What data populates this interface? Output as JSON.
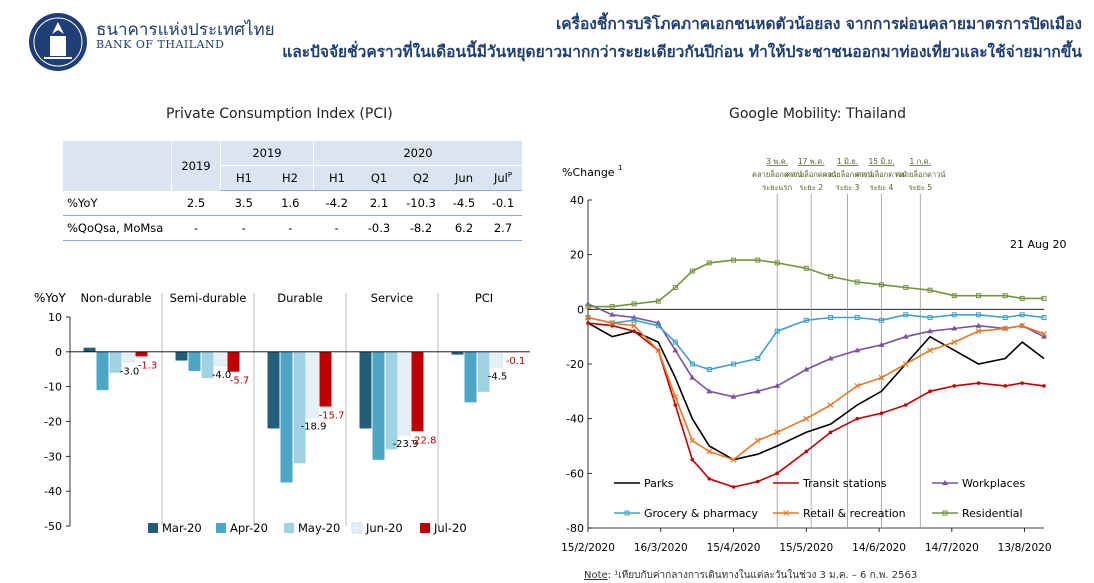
{
  "header": {
    "bank_name_th": "ธนาคารแห่งประเทศไทย",
    "bank_name_en": "BANK OF THAILAND",
    "logo_icon": "bot-seal-icon",
    "headline_line1": "เครื่องชี้การบริโภคภาคเอกชนหดตัวน้อยลง จากการผ่อนคลายมาตรการปิดเมือง",
    "headline_line2": "และปัจจัยชั่วคราวที่ในเดือนนี้มีวันหยุดยาวมากกว่าระยะเดียวกันปีก่อน ทำให้ประชาชนออกมาท่องเที่ยวและใช้จ่ายมากขึ้น",
    "title_color": "#1f3e74"
  },
  "pci_table": {
    "title": "Private Consumption Index (PCI)",
    "groups": [
      "2019",
      "2019",
      "2020"
    ],
    "year_2019": "2019",
    "group_2019": "2019",
    "group_2020": "2020",
    "sub_headers": [
      "H1",
      "H2",
      "H1",
      "Q1",
      "Q2",
      "Jun",
      "Jul"
    ],
    "jul_sup": "P",
    "rows": [
      {
        "label": "%YoY",
        "values": [
          "2.5",
          "3.5",
          "1.6",
          "-4.2",
          "2.1",
          "-10.3",
          "-4.5",
          "-0.1"
        ]
      },
      {
        "label": "%QoQsa, MoMsa",
        "values": [
          "-",
          "-",
          "-",
          "-",
          "-0.3",
          "-8.2",
          "6.2",
          "2.7"
        ]
      }
    ]
  },
  "chart_data": [
    {
      "type": "bar",
      "ylabel": "%YoY",
      "ylim": [
        -50,
        10
      ],
      "yticks": [
        10,
        0,
        -10,
        -20,
        -30,
        -40,
        -50
      ],
      "categories": [
        "Non-durable",
        "Semi-durable",
        "Durable",
        "Service",
        "PCI"
      ],
      "series": [
        {
          "name": "Mar-20",
          "color": "#215f78",
          "values": [
            1.2,
            -2.5,
            -22.0,
            -22.0,
            -0.8
          ]
        },
        {
          "name": "Apr-20",
          "color": "#4ba7c5",
          "values": [
            -11.0,
            -5.5,
            -37.5,
            -31.0,
            -14.5
          ]
        },
        {
          "name": "May-20",
          "color": "#9fd3e3",
          "values": [
            -6.0,
            -7.5,
            -32.0,
            -28.0,
            -11.5
          ]
        },
        {
          "name": "Jun-20",
          "color": "#e3f1f6",
          "values": [
            -3.0,
            -4.0,
            -18.9,
            -23.9,
            -4.5
          ]
        },
        {
          "name": "Jul-20",
          "color": "#c00000",
          "values": [
            -1.3,
            -5.7,
            -15.7,
            -22.8,
            -0.1
          ]
        }
      ],
      "data_labels": [
        {
          "category": "Non-durable",
          "series": "Jun-20",
          "text": "-3.0",
          "color": "#000000"
        },
        {
          "category": "Non-durable",
          "series": "Jul-20",
          "text": "-1.3",
          "color": "#c00000"
        },
        {
          "category": "Semi-durable",
          "series": "Jun-20",
          "text": "-4.0",
          "color": "#000000"
        },
        {
          "category": "Semi-durable",
          "series": "Jul-20",
          "text": "-5.7",
          "color": "#c00000"
        },
        {
          "category": "Durable",
          "series": "Jun-20",
          "text": "-18.9",
          "color": "#000000"
        },
        {
          "category": "Durable",
          "series": "Jul-20",
          "text": "-15.7",
          "color": "#c00000"
        },
        {
          "category": "Service",
          "series": "Jun-20",
          "text": "-23.9",
          "color": "#000000"
        },
        {
          "category": "Service",
          "series": "Jul-20",
          "text": "-22.8",
          "color": "#c00000"
        },
        {
          "category": "PCI",
          "series": "Jun-20",
          "text": "-4.5",
          "color": "#000000"
        },
        {
          "category": "PCI",
          "series": "Jul-20",
          "text": "-0.1",
          "color": "#c00000"
        }
      ],
      "legend_position": "bottom"
    },
    {
      "type": "line",
      "title": "Google Mobility: Thailand",
      "ylabel": "%Change",
      "ylabel_sup": "1",
      "ylim": [
        -80,
        40
      ],
      "yticks": [
        40,
        20,
        0,
        -20,
        -40,
        -60,
        -80
      ],
      "xlim": [
        "2020-02-15",
        "2020-08-21"
      ],
      "xticks": [
        "15/2/2020",
        "16/3/2020",
        "15/4/2020",
        "15/5/2020",
        "14/6/2020",
        "14/7/2020",
        "13/8/2020"
      ],
      "end_label": "21 Aug 20",
      "event_lines": [
        {
          "date": "2020-05-03",
          "top": "3 พ.ค.",
          "mid": "คลายล็อกดาวน์",
          "bot": "ระยะแรก"
        },
        {
          "date": "2020-05-17",
          "top": "17 พ.ค.",
          "mid": "คลายล็อกดาวน์",
          "bot": "ระยะ 2"
        },
        {
          "date": "2020-06-01",
          "top": "1 มิ.ย.",
          "mid": "คลายล็อกดาวน์",
          "bot": "ระยะ 3"
        },
        {
          "date": "2020-06-15",
          "top": "15 มิ.ย.",
          "mid": "คลายล็อกดาวน์",
          "bot": "ระยะ 4"
        },
        {
          "date": "2020-07-01",
          "top": "1 ก.ค.",
          "mid": "คลายล็อกดาวน์",
          "bot": "ระยะ 5"
        }
      ],
      "series": [
        {
          "name": "Parks",
          "color": "#000000",
          "marker": "none",
          "x": [
            "2020-02-15",
            "2020-02-25",
            "2020-03-05",
            "2020-03-15",
            "2020-03-22",
            "2020-03-29",
            "2020-04-05",
            "2020-04-15",
            "2020-04-25",
            "2020-05-03",
            "2020-05-15",
            "2020-05-25",
            "2020-06-05",
            "2020-06-15",
            "2020-06-25",
            "2020-07-05",
            "2020-07-15",
            "2020-07-25",
            "2020-08-05",
            "2020-08-12",
            "2020-08-21"
          ],
          "y": [
            -5,
            -10,
            -8,
            -12,
            -25,
            -40,
            -50,
            -55,
            -53,
            -50,
            -45,
            -42,
            -35,
            -30,
            -20,
            -10,
            -15,
            -20,
            -18,
            -12,
            -18
          ]
        },
        {
          "name": "Transit stations",
          "color": "#c00000",
          "marker": "dot",
          "x": [
            "2020-02-15",
            "2020-02-25",
            "2020-03-05",
            "2020-03-15",
            "2020-03-22",
            "2020-03-29",
            "2020-04-05",
            "2020-04-15",
            "2020-04-25",
            "2020-05-03",
            "2020-05-15",
            "2020-05-25",
            "2020-06-05",
            "2020-06-15",
            "2020-06-25",
            "2020-07-05",
            "2020-07-15",
            "2020-07-25",
            "2020-08-05",
            "2020-08-12",
            "2020-08-21"
          ],
          "y": [
            -5,
            -6,
            -8,
            -15,
            -35,
            -55,
            -62,
            -65,
            -63,
            -60,
            -52,
            -45,
            -40,
            -38,
            -35,
            -30,
            -28,
            -27,
            -28,
            -27,
            -28
          ]
        },
        {
          "name": "Workplaces",
          "color": "#7a52a0",
          "marker": "tri",
          "x": [
            "2020-02-15",
            "2020-02-25",
            "2020-03-05",
            "2020-03-15",
            "2020-03-22",
            "2020-03-29",
            "2020-04-05",
            "2020-04-15",
            "2020-04-25",
            "2020-05-03",
            "2020-05-15",
            "2020-05-25",
            "2020-06-05",
            "2020-06-15",
            "2020-06-25",
            "2020-07-05",
            "2020-07-15",
            "2020-07-25",
            "2020-08-05",
            "2020-08-12",
            "2020-08-21"
          ],
          "y": [
            2,
            -2,
            -3,
            -5,
            -15,
            -25,
            -30,
            -32,
            -30,
            -28,
            -22,
            -18,
            -15,
            -13,
            -10,
            -8,
            -7,
            -6,
            -7,
            -6,
            -10
          ]
        },
        {
          "name": "Grocery & pharmacy",
          "color": "#3fa1c4",
          "marker": "square",
          "x": [
            "2020-02-15",
            "2020-02-25",
            "2020-03-05",
            "2020-03-15",
            "2020-03-22",
            "2020-03-29",
            "2020-04-05",
            "2020-04-15",
            "2020-04-25",
            "2020-05-03",
            "2020-05-15",
            "2020-05-25",
            "2020-06-05",
            "2020-06-15",
            "2020-06-25",
            "2020-07-05",
            "2020-07-15",
            "2020-07-25",
            "2020-08-05",
            "2020-08-12",
            "2020-08-21"
          ],
          "y": [
            -3,
            -5,
            -4,
            -6,
            -12,
            -20,
            -22,
            -20,
            -18,
            -8,
            -4,
            -3,
            -3,
            -4,
            -2,
            -3,
            -2,
            -2,
            -3,
            -2,
            -3
          ]
        },
        {
          "name": "Retail & recreation",
          "color": "#e87722",
          "marker": "x",
          "x": [
            "2020-02-15",
            "2020-02-25",
            "2020-03-05",
            "2020-03-15",
            "2020-03-22",
            "2020-03-29",
            "2020-04-05",
            "2020-04-15",
            "2020-04-25",
            "2020-05-03",
            "2020-05-15",
            "2020-05-25",
            "2020-06-05",
            "2020-06-15",
            "2020-06-25",
            "2020-07-05",
            "2020-07-15",
            "2020-07-25",
            "2020-08-05",
            "2020-08-12",
            "2020-08-21"
          ],
          "y": [
            -3,
            -5,
            -6,
            -15,
            -32,
            -48,
            -52,
            -55,
            -48,
            -45,
            -40,
            -35,
            -28,
            -25,
            -20,
            -15,
            -12,
            -8,
            -7,
            -6,
            -9
          ]
        },
        {
          "name": "Residential",
          "color": "#76923c",
          "marker": "square",
          "x": [
            "2020-02-15",
            "2020-02-25",
            "2020-03-05",
            "2020-03-15",
            "2020-03-22",
            "2020-03-29",
            "2020-04-05",
            "2020-04-15",
            "2020-04-25",
            "2020-05-03",
            "2020-05-15",
            "2020-05-25",
            "2020-06-05",
            "2020-06-15",
            "2020-06-25",
            "2020-07-05",
            "2020-07-15",
            "2020-07-25",
            "2020-08-05",
            "2020-08-12",
            "2020-08-21"
          ],
          "y": [
            1,
            1,
            2,
            3,
            8,
            14,
            17,
            18,
            18,
            17,
            15,
            12,
            10,
            9,
            8,
            7,
            5,
            5,
            5,
            4,
            4
          ]
        }
      ],
      "legend_position": "bottom-inside"
    }
  ],
  "note": {
    "label": "Note",
    "text": ": ¹เทียบกับค่ากลางการเดินทางในแต่ละวันในช่วง 3 ม.ค. – 6 ก.พ. 2563"
  }
}
